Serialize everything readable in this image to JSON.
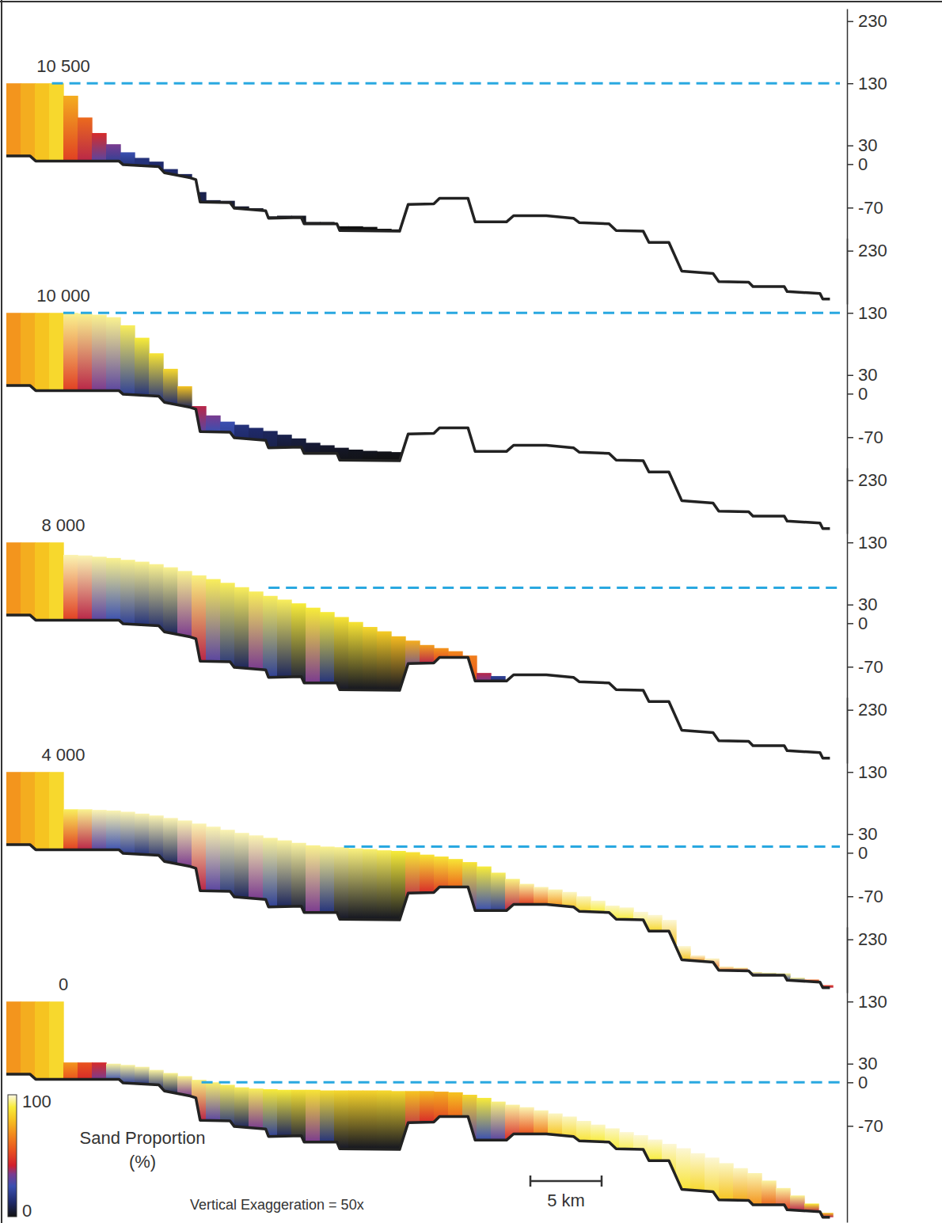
{
  "chart_data": {
    "type": "cross_section",
    "xlim": [
      0,
      58.5
    ],
    "ylim": [
      -225,
      250
    ],
    "yticks": [
      230,
      130,
      30,
      0,
      -70
    ],
    "tick_labels": "y",
    "x": [
      0.5,
      1.5,
      2.5,
      3.5,
      4.5,
      5.5,
      6.5,
      7.5,
      8.5,
      9.5,
      10.5,
      11.5,
      12.5,
      13.5,
      14.5,
      15.5,
      16.5,
      17.5,
      18.5,
      19.5,
      20.5,
      21.5,
      22.5,
      23.5,
      24.5,
      25.5,
      26.5,
      27.5,
      28.5,
      29.5,
      30.5,
      31.5,
      32.5,
      33.5,
      34.5,
      35.5,
      36.5,
      37.5,
      38.5,
      39.5,
      40.5,
      41.5,
      42.5,
      43.5,
      44.5,
      45.5,
      46.5,
      47.5,
      48.5,
      49.5,
      50.5,
      51.5,
      52.5,
      53.5,
      54.5,
      55.5,
      56.5,
      57.5
    ],
    "basement": {
      "x": [
        0,
        1.67,
        2.06,
        7.9,
        8.2,
        10.7,
        11.1,
        12.9,
        13.3,
        13.6,
        15.7,
        16.0,
        18.2,
        18.4,
        20.7,
        20.9,
        23.2,
        23.4,
        27.6,
        28.2,
        30.0,
        30.4,
        32.4,
        32.9,
        35.1,
        35.6,
        37.9,
        39.8,
        40.2,
        42.3,
        42.8,
        44.7,
        45.1,
        46.5,
        47.4,
        49.6,
        50.0,
        52.1,
        52.4,
        54.6,
        54.8,
        57.1,
        57.3,
        57.8
      ],
      "y": [
        13,
        13,
        5,
        5,
        -1,
        -4,
        -14,
        -22,
        -25,
        -61,
        -62,
        -71,
        -75,
        -87,
        -86,
        -96,
        -96,
        -107,
        -108,
        -65,
        -64,
        -55,
        -55,
        -93,
        -93,
        -83,
        -83,
        -87,
        -94,
        -96,
        -107,
        -108,
        -126,
        -126,
        -172,
        -176,
        -189,
        -190,
        -197,
        -197,
        -205,
        -208,
        -217,
        -217
      ]
    },
    "panels": [
      {
        "title": "10 500",
        "sea_level": 130,
        "shoreline_x": 3.2,
        "top": [
          130,
          130,
          130,
          130,
          110,
          75,
          50,
          32,
          19,
          10,
          4,
          -8,
          -16,
          -45,
          -58,
          -59,
          -68,
          -71,
          -84,
          -83,
          -83,
          -93,
          -93,
          -100,
          -100,
          -101,
          -104,
          -105,
          null,
          null,
          null,
          null,
          null,
          null,
          null,
          null,
          null,
          null,
          null,
          null,
          null,
          null,
          null,
          null,
          null,
          null,
          null,
          null,
          null,
          null,
          null,
          null,
          null,
          null,
          null,
          null,
          null,
          null
        ],
        "sand_base": [
          70,
          75,
          80,
          85,
          50,
          40,
          30,
          20,
          15,
          15,
          12,
          12,
          10,
          8,
          6,
          5,
          4,
          3,
          2,
          2,
          2,
          1,
          1,
          0,
          0,
          0,
          0,
          0,
          null,
          null,
          null,
          null,
          null,
          null,
          null,
          null,
          null,
          null,
          null,
          null,
          null,
          null,
          null,
          null,
          null,
          null,
          null,
          null,
          null,
          null,
          null,
          null,
          null,
          null,
          null,
          null,
          null,
          null
        ],
        "sand_top": [
          70,
          75,
          80,
          85,
          75,
          60,
          45,
          35,
          25,
          15,
          12,
          12,
          10,
          8,
          6,
          5,
          4,
          3,
          2,
          2,
          2,
          1,
          1,
          0,
          0,
          0,
          0,
          0,
          null,
          null,
          null,
          null,
          null,
          null,
          null,
          null,
          null,
          null,
          null,
          null,
          null,
          null,
          null,
          null,
          null,
          null,
          null,
          null,
          null,
          null,
          null,
          null,
          null,
          null,
          null,
          null,
          null,
          null
        ]
      },
      {
        "title": "10 000",
        "sea_level": 130,
        "shoreline_x": 4.0,
        "top": [
          130,
          130,
          130,
          130,
          130,
          129,
          127,
          123,
          110,
          90,
          65,
          40,
          12,
          -20,
          -35,
          -45,
          -50,
          -55,
          -60,
          -66,
          -72,
          -79,
          -83,
          -87,
          -90,
          -92,
          -93,
          -94,
          null,
          null,
          null,
          null,
          null,
          null,
          null,
          null,
          null,
          null,
          null,
          null,
          null,
          null,
          null,
          null,
          null,
          null,
          null,
          null,
          null,
          null,
          null,
          null,
          null,
          null,
          null,
          null,
          null,
          null
        ],
        "sand_base": [
          70,
          75,
          80,
          85,
          50,
          40,
          35,
          30,
          20,
          15,
          15,
          12,
          10,
          30,
          25,
          20,
          12,
          10,
          8,
          5,
          4,
          3,
          2,
          1,
          1,
          0,
          0,
          0,
          null,
          null,
          null,
          null,
          null,
          null,
          null,
          null,
          null,
          null,
          null,
          null,
          null,
          null,
          null,
          null,
          null,
          null,
          null,
          null,
          null,
          null,
          null,
          null,
          null,
          null,
          null,
          null,
          null,
          null
        ],
        "sand_top": [
          70,
          75,
          80,
          85,
          95,
          95,
          95,
          95,
          92,
          90,
          88,
          85,
          80,
          40,
          35,
          25,
          15,
          12,
          10,
          8,
          6,
          5,
          4,
          3,
          2,
          2,
          1,
          1,
          null,
          null,
          null,
          null,
          null,
          null,
          null,
          null,
          null,
          null,
          null,
          null,
          null,
          null,
          null,
          null,
          null,
          null,
          null,
          null,
          null,
          null,
          null,
          null,
          null,
          null,
          null,
          null,
          null,
          null
        ]
      },
      {
        "title": "8 000",
        "sea_level": 57,
        "shoreline_x": 18.4,
        "top": [
          130,
          130,
          130,
          130,
          110,
          109,
          107,
          105,
          102,
          99,
          95,
          90,
          84,
          77,
          71,
          65,
          58,
          51,
          44,
          38,
          32,
          25,
          18,
          10,
          2,
          -6,
          -13,
          -21,
          -28,
          -35,
          -40,
          -45,
          -52,
          -80,
          -85,
          null,
          null,
          null,
          null,
          null,
          null,
          null,
          null,
          null,
          null,
          null,
          null,
          null,
          null,
          null,
          null,
          null,
          null,
          null,
          null,
          null,
          null,
          null
        ],
        "sand_base": [
          70,
          75,
          80,
          85,
          50,
          40,
          30,
          25,
          20,
          15,
          12,
          10,
          35,
          40,
          30,
          15,
          10,
          35,
          20,
          10,
          5,
          35,
          15,
          3,
          2,
          2,
          2,
          2,
          30,
          40,
          50,
          60,
          55,
          35,
          15,
          null,
          null,
          null,
          null,
          null,
          null,
          null,
          null,
          null,
          null,
          null,
          null,
          null,
          null,
          null,
          null,
          null,
          null,
          null,
          null,
          null,
          null,
          null
        ],
        "sand_top": [
          70,
          75,
          80,
          85,
          97,
          97,
          96,
          95,
          95,
          95,
          95,
          95,
          95,
          94,
          92,
          92,
          92,
          92,
          92,
          92,
          90,
          90,
          90,
          88,
          88,
          85,
          82,
          78,
          75,
          72,
          70,
          68,
          65,
          40,
          20,
          null,
          null,
          null,
          null,
          null,
          null,
          null,
          null,
          null,
          null,
          null,
          null,
          null,
          null,
          null,
          null,
          null,
          null,
          null,
          null,
          null,
          null,
          null
        ]
      },
      {
        "title": "4 000",
        "sea_level": 10,
        "shoreline_x": 23.7,
        "top": [
          130,
          130,
          130,
          130,
          70,
          70,
          69,
          68,
          66,
          63,
          60,
          56,
          52,
          47,
          42,
          37,
          32,
          28,
          24,
          20,
          16,
          12,
          10,
          9,
          7,
          6,
          4,
          3,
          1,
          -3,
          -6,
          -10,
          -15,
          -22,
          -32,
          -42,
          -50,
          -55,
          -59,
          -63,
          -70,
          -77,
          -85,
          -88,
          -95,
          -100,
          -108,
          -150,
          -165,
          -170,
          -183,
          -185,
          -192,
          -193,
          -194,
          -201,
          -204,
          -213
        ],
        "sand_base": [
          70,
          75,
          80,
          85,
          50,
          40,
          30,
          25,
          20,
          15,
          12,
          10,
          35,
          40,
          30,
          15,
          10,
          35,
          20,
          10,
          5,
          35,
          15,
          3,
          2,
          2,
          2,
          2,
          40,
          45,
          50,
          60,
          30,
          25,
          20,
          40,
          50,
          60,
          70,
          80,
          85,
          90,
          90,
          90,
          92,
          85,
          80,
          80,
          70,
          60,
          60,
          40,
          30,
          20,
          20,
          20,
          40,
          40
        ],
        "sand_top": [
          70,
          75,
          80,
          85,
          92,
          95,
          97,
          97,
          97,
          97,
          97,
          97,
          97,
          97,
          97,
          97,
          97,
          97,
          96,
          96,
          96,
          95,
          95,
          95,
          94,
          93,
          92,
          90,
          88,
          88,
          88,
          88,
          88,
          90,
          92,
          94,
          96,
          97,
          97,
          98,
          98,
          98,
          98,
          98,
          99,
          99,
          99,
          99,
          99,
          98,
          98,
          95,
          95,
          95,
          95,
          95,
          60,
          50
        ]
      },
      {
        "title": "0",
        "sea_level": 0,
        "shoreline_x": 13.7,
        "top": [
          130,
          130,
          130,
          130,
          32,
          32,
          32,
          30,
          28,
          25,
          20,
          15,
          10,
          4,
          0,
          -4,
          -8,
          -10,
          -11,
          -12,
          -12,
          -12,
          -13,
          -13,
          -13,
          -13,
          -13,
          -14,
          -14,
          -14,
          -15,
          -16,
          -20,
          -25,
          -31,
          -36,
          -40,
          -45,
          -50,
          -55,
          -62,
          -68,
          -74,
          -80,
          -85,
          -92,
          -99,
          -106,
          -114,
          -121,
          -130,
          -138,
          -146,
          -158,
          -170,
          -182,
          -195,
          -210
        ],
        "sand_base": [
          70,
          75,
          80,
          85,
          55,
          45,
          35,
          25,
          20,
          15,
          12,
          10,
          35,
          40,
          30,
          15,
          10,
          35,
          20,
          10,
          5,
          35,
          15,
          3,
          2,
          2,
          2,
          2,
          40,
          45,
          50,
          60,
          30,
          25,
          30,
          45,
          55,
          65,
          80,
          85,
          88,
          90,
          90,
          92,
          92,
          90,
          88,
          88,
          85,
          85,
          80,
          75,
          70,
          60,
          50,
          40,
          40,
          40
        ],
        "sand_top": [
          70,
          75,
          80,
          85,
          70,
          55,
          45,
          96,
          96,
          96,
          96,
          95,
          95,
          94,
          93,
          92,
          92,
          92,
          90,
          90,
          88,
          88,
          86,
          85,
          84,
          84,
          85,
          85,
          80,
          78,
          75,
          80,
          85,
          90,
          94,
          96,
          97,
          97,
          98,
          98,
          98,
          98,
          98,
          99,
          99,
          99,
          99,
          99,
          99,
          99,
          98,
          98,
          97,
          96,
          96,
          95,
          90,
          80
        ]
      }
    ],
    "colorbar": {
      "title": "Sand Proportion (%)",
      "range": [
        0,
        100
      ],
      "ticks": [
        0,
        100
      ]
    },
    "scale_bar": {
      "length": 5,
      "label": "5 km"
    },
    "annotations": [
      "Vertical Exaggeration = 50x"
    ]
  }
}
